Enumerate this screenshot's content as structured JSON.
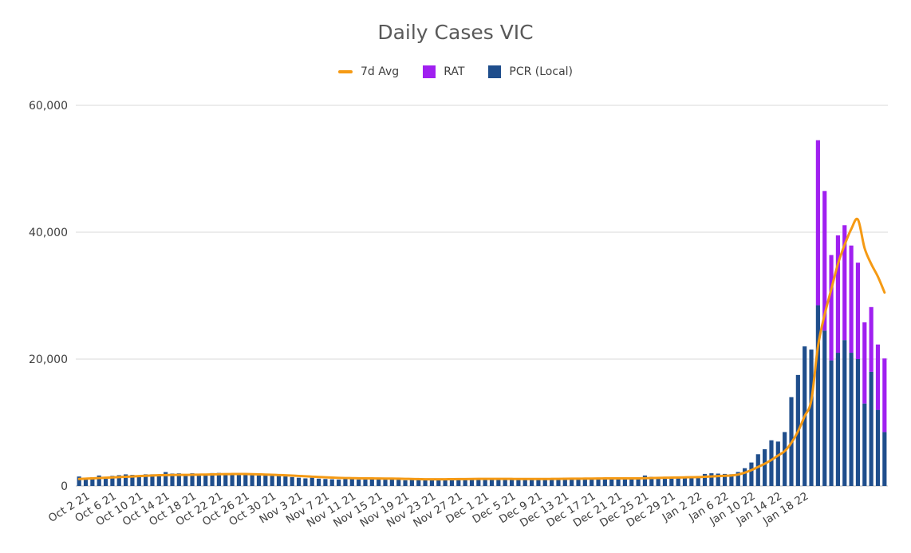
{
  "chart_data": {
    "type": "bar",
    "title": "Daily Cases VIC",
    "xlabel": "",
    "ylabel": "",
    "ylim": [
      0,
      60000
    ],
    "y_ticks": [
      0,
      20000,
      40000,
      60000
    ],
    "y_tick_labels": [
      "0",
      "20,000",
      "40,000",
      "60,000"
    ],
    "grid": true,
    "legend_position": "top",
    "stacked": true,
    "x_tick_labels": [
      "Oct 2 21",
      "Oct 6 21",
      "Oct 10 21",
      "Oct 14 21",
      "Oct 18 21",
      "Oct 22 21",
      "Oct 26 21",
      "Oct 30 21",
      "Nov 3 21",
      "Nov 7 21",
      "Nov 11 21",
      "Nov 15 21",
      "Nov 19 21",
      "Nov 23 21",
      "Nov 27 21",
      "Dec 1 21",
      "Dec 5 21",
      "Dec 9 21",
      "Dec 13 21",
      "Dec 17 21",
      "Dec 21 21",
      "Dec 25 21",
      "Dec 29 21",
      "Jan 2 22",
      "Jan 6 22",
      "Jan 10 22",
      "Jan 14 22",
      "Jan 18 22"
    ],
    "series": [
      {
        "name": "PCR (Local)",
        "kind": "bar",
        "color": "#1f4e8c",
        "values": [
          1490,
          1220,
          1370,
          1650,
          1420,
          1600,
          1700,
          1830,
          1750,
          1620,
          1840,
          1840,
          1740,
          2190,
          1960,
          1990,
          1840,
          2000,
          1900,
          1910,
          2030,
          2060,
          1930,
          2010,
          1980,
          1810,
          1830,
          1650,
          1720,
          1600,
          1600,
          1500,
          1400,
          1300,
          1200,
          1300,
          1150,
          1100,
          1050,
          1000,
          1200,
          1100,
          1000,
          1000,
          1100,
          1050,
          1000,
          1050,
          1000,
          900,
          950,
          1050,
          1000,
          1100,
          1050,
          1100,
          1000,
          1200,
          1100,
          1100,
          1150,
          1050,
          1150,
          1100,
          1150,
          1100,
          1200,
          1100,
          1050,
          1000,
          1150,
          1250,
          1200,
          1300,
          1200,
          1150,
          1250,
          1100,
          1200,
          1150,
          1200,
          1150,
          1200,
          1150,
          1200,
          1650,
          1450,
          1300,
          1350,
          1350,
          1250,
          1300,
          1350,
          1500,
          1900,
          2000,
          1950,
          1900,
          1850,
          2200,
          2800,
          3700,
          5000,
          5800,
          7200,
          7000,
          8500,
          14000,
          17500,
          22000,
          21500,
          28500,
          24500,
          19800,
          21000,
          23000,
          21000,
          20000,
          13000,
          18000,
          12000,
          8500
        ]
      },
      {
        "name": "RAT",
        "kind": "bar",
        "color": "#a020f0",
        "values": [
          0,
          0,
          0,
          0,
          0,
          0,
          0,
          0,
          0,
          0,
          0,
          0,
          0,
          0,
          0,
          0,
          0,
          0,
          0,
          0,
          0,
          0,
          0,
          0,
          0,
          0,
          0,
          0,
          0,
          0,
          0,
          0,
          0,
          0,
          0,
          0,
          0,
          0,
          0,
          0,
          0,
          0,
          0,
          0,
          0,
          0,
          0,
          0,
          0,
          0,
          0,
          0,
          0,
          0,
          0,
          0,
          0,
          0,
          0,
          0,
          0,
          0,
          0,
          0,
          0,
          0,
          0,
          0,
          0,
          0,
          0,
          0,
          0,
          0,
          0,
          0,
          0,
          0,
          0,
          0,
          0,
          0,
          0,
          0,
          0,
          0,
          0,
          0,
          0,
          0,
          0,
          0,
          0,
          0,
          0,
          0,
          0,
          0,
          0,
          0,
          0,
          0,
          0,
          0,
          0,
          0,
          0,
          0,
          0,
          0,
          0,
          26000,
          22000,
          16600,
          18500,
          18100,
          16900,
          15200,
          12800,
          10200,
          10300,
          11600
        ]
      },
      {
        "name": "7d Avg",
        "kind": "line",
        "color": "#f59a14",
        "values": [
          1100,
          1150,
          1200,
          1250,
          1300,
          1350,
          1400,
          1450,
          1500,
          1550,
          1600,
          1650,
          1700,
          1720,
          1730,
          1740,
          1750,
          1760,
          1780,
          1800,
          1830,
          1850,
          1870,
          1880,
          1890,
          1880,
          1860,
          1830,
          1800,
          1760,
          1720,
          1680,
          1630,
          1580,
          1520,
          1470,
          1420,
          1370,
          1320,
          1280,
          1250,
          1230,
          1210,
          1200,
          1190,
          1180,
          1170,
          1160,
          1140,
          1120,
          1100,
          1080,
          1060,
          1050,
          1050,
          1060,
          1070,
          1080,
          1090,
          1100,
          1110,
          1120,
          1120,
          1120,
          1120,
          1110,
          1100,
          1100,
          1100,
          1100,
          1100,
          1110,
          1120,
          1130,
          1140,
          1150,
          1160,
          1170,
          1180,
          1190,
          1200,
          1200,
          1200,
          1200,
          1200,
          1220,
          1250,
          1280,
          1300,
          1320,
          1340,
          1360,
          1380,
          1400,
          1450,
          1500,
          1550,
          1600,
          1650,
          1800,
          2100,
          2500,
          3000,
          3500,
          4100,
          4800,
          5500,
          6800,
          8600,
          11000,
          13500,
          22000,
          27000,
          31000,
          35000,
          38000,
          40500,
          42000,
          37500,
          35000,
          33000,
          30500
        ]
      }
    ]
  }
}
